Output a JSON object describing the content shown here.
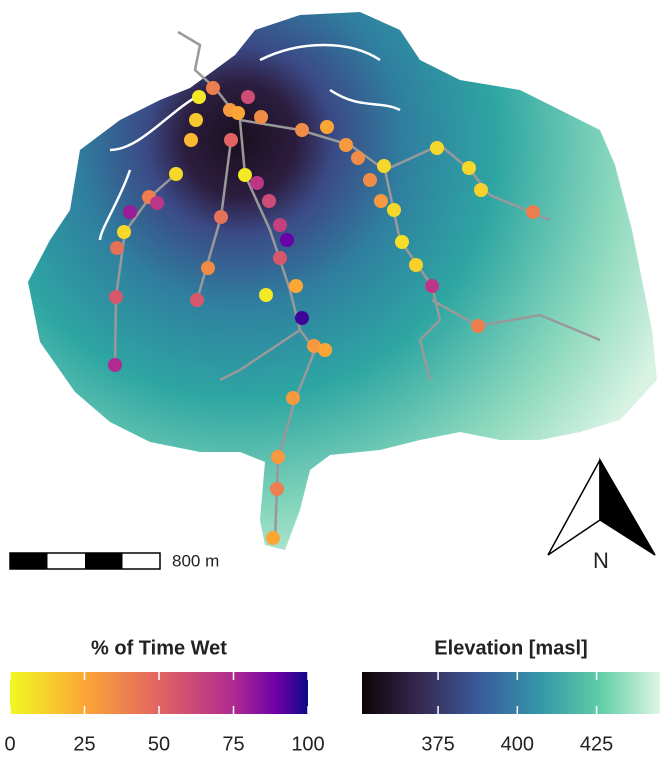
{
  "map": {
    "scale_bar_label": "800 m",
    "north_label": "N",
    "wet_legend": {
      "title": "% of Time Wet",
      "lim": [
        0,
        100
      ],
      "ticks": [
        0,
        25,
        50,
        75,
        100
      ]
    },
    "elevation_legend": {
      "title": "Elevation [masl]",
      "lim": [
        351,
        445
      ],
      "ticks": [
        375,
        400,
        425
      ]
    },
    "site_wet_values": [
      40,
      5,
      60,
      15,
      30,
      25,
      35,
      35,
      25,
      30,
      35,
      50,
      20,
      10,
      5,
      70,
      60,
      40,
      80,
      70,
      45,
      65,
      90,
      55,
      10,
      45,
      35,
      25,
      5,
      55,
      55,
      95,
      75,
      10,
      30,
      10,
      10,
      10,
      12,
      40,
      8,
      12,
      70,
      40,
      30,
      25,
      30,
      30,
      40,
      25,
      35
    ]
  }
}
